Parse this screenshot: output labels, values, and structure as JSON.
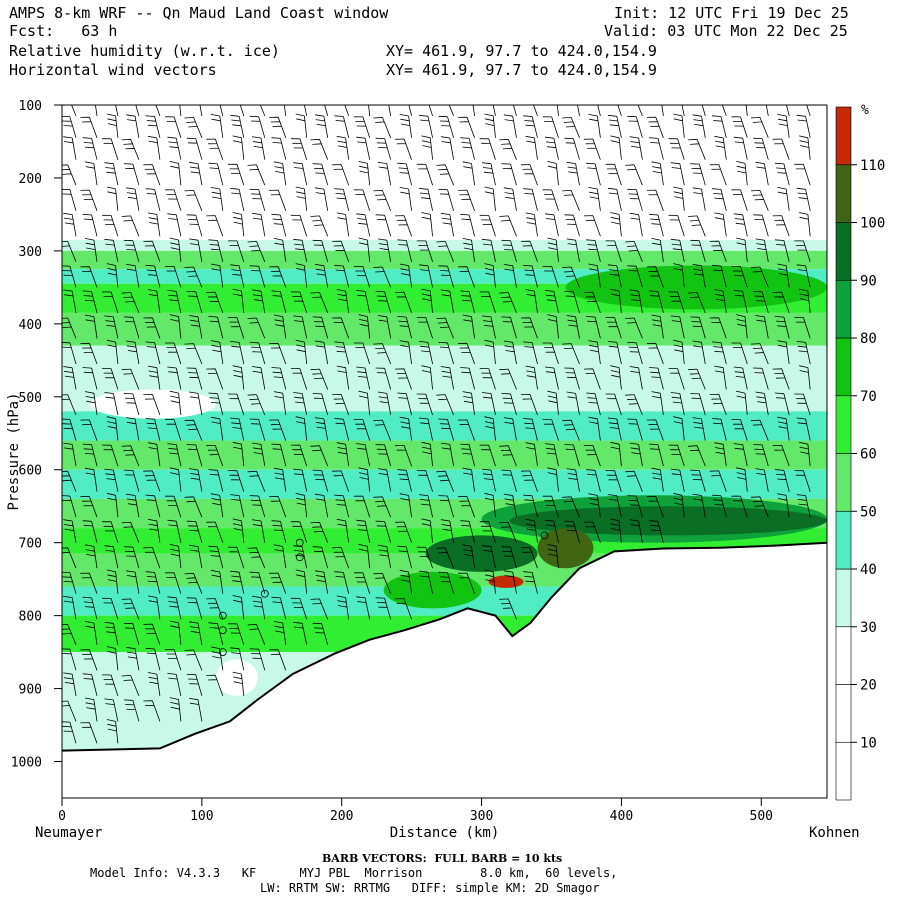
{
  "header": {
    "title": "AMPS 8-km WRF -- Qn Maud Land Coast window",
    "fcst": "Fcst:   63 h",
    "init": "Init: 12 UTC Fri 19 Dec 25",
    "valid": "Valid: 03 UTC Mon 22 Dec 25",
    "field1": "Relative humidity (w.r.t. ice)",
    "field2": "Horizontal wind vectors",
    "xy1": "XY= 461.9, 97.7 to 424.0,154.9",
    "xy2": "XY= 461.9, 97.7 to 424.0,154.9"
  },
  "footer": {
    "barb_note": "BARB VECTORS:  FULL BARB = 10 kts",
    "model_line": "Model Info: V4.3.3   KF      MYJ PBL  Morrison        8.0 km,  60 levels,",
    "physics_line": "LW: RRTM SW: RRTMG   DIFF: simple KM: 2D Smagor"
  },
  "chart_data": {
    "type": "heatmap",
    "title": "Relative humidity (w.r.t. ice) cross-section with horizontal wind barbs",
    "xlabel": "Distance (km)",
    "ylabel": "Pressure (hPa)",
    "xlim": [
      0,
      547
    ],
    "ylim": [
      1050,
      100
    ],
    "x_ticks": [
      0,
      100,
      200,
      300,
      400,
      500
    ],
    "y_ticks": [
      100,
      200,
      300,
      400,
      500,
      600,
      700,
      800,
      900,
      1000
    ],
    "left_endpoint": "Neumayer",
    "right_endpoint": "Kohnen",
    "colorbar": {
      "unit": "%",
      "levels": [
        10,
        20,
        30,
        40,
        50,
        60,
        70,
        80,
        90,
        100,
        110
      ],
      "colors": [
        "#ffffff",
        "#ffffff",
        "#ffffff",
        "#c8f8e8",
        "#50ecc4",
        "#64e86a",
        "#32ee32",
        "#12c412",
        "#0ea23a",
        "#0a6e24",
        "#406614",
        "#c42a06"
      ]
    },
    "terrain": [
      [
        0,
        985
      ],
      [
        70,
        982
      ],
      [
        95,
        962
      ],
      [
        120,
        945
      ],
      [
        140,
        915
      ],
      [
        165,
        880
      ],
      [
        195,
        852
      ],
      [
        220,
        833
      ],
      [
        245,
        820
      ],
      [
        270,
        805
      ],
      [
        290,
        790
      ],
      [
        310,
        800
      ],
      [
        322,
        828
      ],
      [
        335,
        810
      ],
      [
        350,
        775
      ],
      [
        370,
        735
      ],
      [
        395,
        712
      ],
      [
        430,
        708
      ],
      [
        470,
        707
      ],
      [
        510,
        704
      ],
      [
        547,
        700
      ]
    ],
    "rh_layers": [
      {
        "p_top": 100,
        "p_bot": 285,
        "rh": 10
      },
      {
        "p_top": 285,
        "p_bot": 300,
        "rh": 35
      },
      {
        "p_top": 300,
        "p_bot": 325,
        "rh": 55
      },
      {
        "p_top": 325,
        "p_bot": 345,
        "rh": 45
      },
      {
        "p_top": 345,
        "p_bot": 385,
        "rh": 65
      },
      {
        "p_top": 385,
        "p_bot": 430,
        "rh": 55
      },
      {
        "p_top": 430,
        "p_bot": 470,
        "rh": 35
      },
      {
        "p_top": 470,
        "p_bot": 520,
        "rh": 35
      },
      {
        "p_top": 520,
        "p_bot": 560,
        "rh": 45
      },
      {
        "p_top": 560,
        "p_bot": 600,
        "rh": 55
      },
      {
        "p_top": 600,
        "p_bot": 640,
        "rh": 45
      },
      {
        "p_top": 640,
        "p_bot": 680,
        "rh": 55
      },
      {
        "p_top": 680,
        "p_bot": 715,
        "rh": 65
      },
      {
        "p_top": 715,
        "p_bot": 760,
        "rh": 55
      },
      {
        "p_top": 760,
        "p_bot": 800,
        "rh": 45
      },
      {
        "p_top": 800,
        "p_bot": 850,
        "rh": 65
      },
      {
        "p_top": 850,
        "p_bot": 1050,
        "rh": 35
      }
    ],
    "rh_features": [
      {
        "x": [
          300,
          547
        ],
        "p": [
          635,
          700
        ],
        "rh": 85
      },
      {
        "x": [
          320,
          547
        ],
        "p": [
          650,
          690
        ],
        "rh": 95
      },
      {
        "x": [
          260,
          340
        ],
        "p": [
          690,
          740
        ],
        "rh": 95
      },
      {
        "x": [
          340,
          380
        ],
        "p": [
          680,
          735
        ],
        "rh": 105
      },
      {
        "x": [
          305,
          330
        ],
        "p": [
          745,
          762
        ],
        "rh": 115
      },
      {
        "x": [
          230,
          300
        ],
        "p": [
          740,
          790
        ],
        "rh": 75
      },
      {
        "x": [
          20,
          110
        ],
        "p": [
          490,
          530
        ],
        "rh": 25
      },
      {
        "x": [
          110,
          140
        ],
        "p": [
          860,
          910
        ],
        "rh": 25
      },
      {
        "x": [
          360,
          547
        ],
        "p": [
          320,
          380
        ],
        "rh": 75
      }
    ],
    "wind_barbs": {
      "x_columns": [
        10,
        25,
        40,
        55,
        70,
        85,
        100,
        115,
        130,
        145,
        160,
        175,
        190,
        205,
        220,
        235,
        250,
        265,
        280,
        295,
        310,
        325,
        340,
        355,
        370,
        385,
        400,
        415,
        430,
        445,
        460,
        475,
        490,
        505,
        520,
        535
      ],
      "p_levels": [
        115,
        145,
        175,
        210,
        245,
        280,
        315,
        350,
        385,
        420,
        455,
        490,
        525,
        560,
        595,
        630,
        665,
        700,
        735,
        770,
        805,
        840,
        875,
        910,
        945,
        975
      ],
      "note": "full barb = 10 kts"
    },
    "calm_circles": [
      [
        115,
        800
      ],
      [
        115,
        820
      ],
      [
        115,
        850
      ],
      [
        145,
        770
      ],
      [
        170,
        700
      ],
      [
        170,
        720
      ],
      [
        345,
        690
      ]
    ]
  }
}
